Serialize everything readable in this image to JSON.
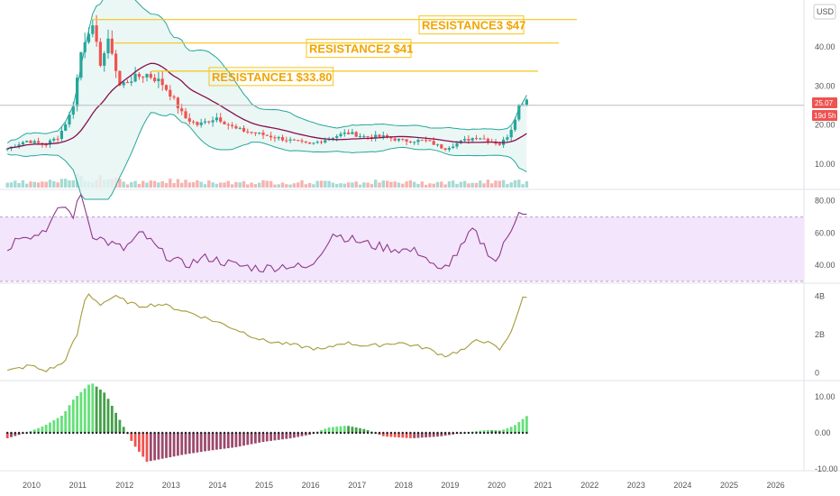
{
  "chart_data": {
    "type": "candlestick",
    "currency_label": "USD",
    "last_price_label": "25.07",
    "countdown_label": "19d 5h",
    "colors": {
      "up": "#26a69a",
      "down": "#ef5350",
      "resistance": "#f5c518",
      "res_text": "#f0a500",
      "bb": "#26a69a",
      "sma": "#880e4f",
      "rsi": "#8e3a8c",
      "rsi_band": "#f3e5fb",
      "obv": "#a69a3b",
      "macd_pos_strong": "#66e07a",
      "macd_pos_weak": "#b2dfb7",
      "macd_neg_strong": "#ef5350",
      "macd_neg_weak": "#f7b2b0"
    },
    "x_ticks": [
      "2010",
      "2011",
      "2012",
      "2013",
      "2014",
      "2015",
      "2016",
      "2017",
      "2018",
      "2019",
      "2020",
      "2021",
      "2022",
      "2023",
      "2024",
      "2025",
      "2026"
    ],
    "price_axis": {
      "ticks": [
        "10.00",
        "20.00",
        "30.00",
        "40.00"
      ],
      "values": [
        10,
        20,
        30,
        40
      ],
      "range": [
        4,
        52
      ]
    },
    "rsi_axis": {
      "ticks": [
        "40.00",
        "60.00",
        "80.00"
      ],
      "values": [
        40,
        60,
        80
      ],
      "range": [
        30,
        86
      ],
      "band": [
        30,
        70
      ]
    },
    "obv_axis": {
      "ticks": [
        "0",
        "2B",
        "4B"
      ],
      "values": [
        0,
        2,
        4
      ],
      "range": [
        -0.3,
        4.6
      ]
    },
    "macd_axis": {
      "ticks": [
        "-10.00",
        "0.00",
        "10.00"
      ],
      "values": [
        -10,
        0,
        10
      ],
      "range": [
        -10.5,
        14
      ]
    },
    "resistances": [
      {
        "label": "RESISTANCE1 $33.80",
        "price": 33.8,
        "start": "2012.6"
      },
      {
        "label": "RESISTANCE2 $41",
        "price": 41,
        "start": "2011.8"
      },
      {
        "label": "RESISTANCE3 $47",
        "price": 47,
        "start": "2011.3"
      }
    ],
    "anchors": {
      "close": [
        [
          "2009.5",
          14
        ],
        [
          "2009.9",
          16
        ],
        [
          "2010.3",
          15
        ],
        [
          "2010.6",
          17
        ],
        [
          "2010.9",
          24
        ],
        [
          "2011.1",
          40
        ],
        [
          "2011.3",
          46
        ],
        [
          "2011.5",
          36
        ],
        [
          "2011.7",
          42
        ],
        [
          "2011.9",
          30
        ],
        [
          "2012.2",
          32
        ],
        [
          "2012.5",
          33
        ],
        [
          "2012.8",
          31
        ],
        [
          "2013.0",
          28
        ],
        [
          "2013.3",
          22
        ],
        [
          "2013.6",
          20
        ],
        [
          "2014.0",
          22
        ],
        [
          "2014.4",
          19
        ],
        [
          "2014.8",
          18
        ],
        [
          "2015.2",
          17
        ],
        [
          "2015.6",
          16
        ],
        [
          "2016.0",
          15
        ],
        [
          "2016.5",
          17
        ],
        [
          "2016.8",
          18
        ],
        [
          "2017.2",
          17
        ],
        [
          "2017.6",
          17
        ],
        [
          "2018.0",
          16
        ],
        [
          "2018.5",
          16
        ],
        [
          "2018.9",
          14
        ],
        [
          "2019.3",
          16
        ],
        [
          "2019.6",
          17
        ],
        [
          "2019.9",
          16
        ],
        [
          "2020.1",
          15
        ],
        [
          "2020.3",
          18
        ],
        [
          "2020.5",
          25
        ],
        [
          "2020.7",
          27
        ]
      ],
      "rsi": [
        [
          "2009.5",
          50
        ],
        [
          "2009.8",
          60
        ],
        [
          "2010.1",
          58
        ],
        [
          "2010.4",
          65
        ],
        [
          "2010.7",
          78
        ],
        [
          "2010.9",
          70
        ],
        [
          "2011.1",
          85
        ],
        [
          "2011.3",
          60
        ],
        [
          "2011.6",
          55
        ],
        [
          "2012.0",
          50
        ],
        [
          "2012.4",
          60
        ],
        [
          "2012.8",
          48
        ],
        [
          "2013.3",
          40
        ],
        [
          "2013.8",
          45
        ],
        [
          "2014.4",
          40
        ],
        [
          "2015.0",
          38
        ],
        [
          "2015.5",
          40
        ],
        [
          "2016.0",
          38
        ],
        [
          "2016.5",
          60
        ],
        [
          "2016.9",
          56
        ],
        [
          "2017.4",
          52
        ],
        [
          "2017.9",
          50
        ],
        [
          "2018.4",
          48
        ],
        [
          "2018.8",
          35
        ],
        [
          "2019.3",
          52
        ],
        [
          "2019.5",
          62
        ],
        [
          "2019.8",
          50
        ],
        [
          "2020.0",
          42
        ],
        [
          "2020.3",
          60
        ],
        [
          "2020.5",
          75
        ],
        [
          "2020.7",
          70
        ]
      ],
      "obv": [
        [
          "2009.5",
          0.1
        ],
        [
          "2010.0",
          0.4
        ],
        [
          "2010.3",
          0.1
        ],
        [
          "2010.7",
          0.5
        ],
        [
          "2011.0",
          2.0
        ],
        [
          "2011.2",
          4.2
        ],
        [
          "2011.5",
          3.6
        ],
        [
          "2011.8",
          4.0
        ],
        [
          "2012.3",
          3.5
        ],
        [
          "2012.8",
          3.6
        ],
        [
          "2013.5",
          3.1
        ],
        [
          "2014.2",
          2.5
        ],
        [
          "2015.0",
          1.7
        ],
        [
          "2015.8",
          1.4
        ],
        [
          "2016.3",
          1.2
        ],
        [
          "2016.7",
          1.6
        ],
        [
          "2017.3",
          1.4
        ],
        [
          "2017.9",
          1.6
        ],
        [
          "2018.5",
          1.3
        ],
        [
          "2018.9",
          0.9
        ],
        [
          "2019.4",
          1.3
        ],
        [
          "2019.6",
          1.8
        ],
        [
          "2019.9",
          1.5
        ],
        [
          "2020.1",
          1.2
        ],
        [
          "2020.3",
          2.0
        ],
        [
          "2020.6",
          4.0
        ],
        [
          "2020.7",
          3.9
        ]
      ],
      "macd": [
        [
          "2009.5",
          -1.5
        ],
        [
          "2009.9",
          0
        ],
        [
          "2010.3",
          2
        ],
        [
          "2010.7",
          5
        ],
        [
          "2010.9",
          9
        ],
        [
          "2011.3",
          14
        ],
        [
          "2011.6",
          11
        ],
        [
          "2011.9",
          4
        ],
        [
          "2012.2",
          -3
        ],
        [
          "2012.5",
          -8
        ],
        [
          "2012.9",
          -7
        ],
        [
          "2013.3",
          -6
        ],
        [
          "2013.8",
          -5
        ],
        [
          "2014.4",
          -4
        ],
        [
          "2015.0",
          -2.5
        ],
        [
          "2015.6",
          -1.5
        ],
        [
          "2016.0",
          -0.5
        ],
        [
          "2016.4",
          1.5
        ],
        [
          "2016.8",
          2.0
        ],
        [
          "2017.2",
          1
        ],
        [
          "2017.6",
          -1
        ],
        [
          "2018.2",
          -1.5
        ],
        [
          "2018.8",
          -1.0
        ],
        [
          "2019.3",
          0
        ],
        [
          "2019.8",
          0.8
        ],
        [
          "2020.1",
          0.6
        ],
        [
          "2020.4",
          2
        ],
        [
          "2020.7",
          5
        ]
      ]
    }
  }
}
